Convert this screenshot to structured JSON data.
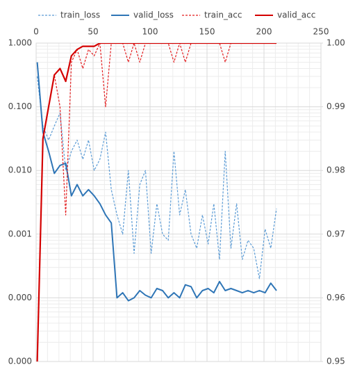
{
  "chart_data": {
    "type": "line",
    "x": [
      1,
      6,
      11,
      16,
      21,
      26,
      31,
      36,
      41,
      46,
      51,
      56,
      61,
      66,
      71,
      76,
      81,
      86,
      91,
      96,
      101,
      106,
      111,
      116,
      121,
      126,
      131,
      136,
      141,
      146,
      151,
      156,
      161,
      166,
      171,
      176,
      181,
      186,
      191,
      196,
      201,
      206,
      211
    ],
    "series": [
      {
        "name": "train_loss",
        "color": "#5b9bd5",
        "dashed": true,
        "axis": "y",
        "values": [
          0.3,
          0.05,
          0.03,
          0.05,
          0.08,
          0.01,
          0.02,
          0.03,
          0.015,
          0.03,
          0.01,
          0.015,
          0.04,
          0.005,
          0.002,
          0.001,
          0.01,
          0.0005,
          0.006,
          0.01,
          0.0005,
          0.003,
          0.001,
          0.0008,
          0.02,
          0.002,
          0.005,
          0.001,
          0.0006,
          0.002,
          0.0007,
          0.003,
          0.0004,
          0.02,
          0.0006,
          0.003,
          0.0004,
          0.0008,
          0.0006,
          0.0002,
          0.0012,
          0.0006,
          0.0025
        ]
      },
      {
        "name": "valid_loss",
        "color": "#2e75b6",
        "dashed": false,
        "axis": "y",
        "values": [
          0.5,
          0.04,
          0.02,
          0.009,
          0.012,
          0.013,
          0.004,
          0.006,
          0.004,
          0.005,
          0.004,
          0.003,
          0.002,
          0.0015,
          0.0001,
          0.00012,
          9e-05,
          0.0001,
          0.00013,
          0.00011,
          0.0001,
          0.00014,
          0.00013,
          0.0001,
          0.00012,
          0.0001,
          0.00016,
          0.00015,
          0.0001,
          0.00013,
          0.00014,
          0.00012,
          0.00018,
          0.00013,
          0.00014,
          0.00013,
          0.00012,
          0.00013,
          0.00012,
          0.00013,
          0.00012,
          0.00017,
          0.00013
        ]
      },
      {
        "name": "train_acc",
        "color": "#e31a1c",
        "dashed": true,
        "axis": "y2",
        "values": [
          0.95,
          0.985,
          0.99,
          0.995,
          0.99,
          0.973,
          0.997,
          0.999,
          0.996,
          0.999,
          0.998,
          1.0,
          0.99,
          1.0,
          1.0,
          1.0,
          0.997,
          1.0,
          0.997,
          1.0,
          1.0,
          1.0,
          1.0,
          1.0,
          0.997,
          1.0,
          0.997,
          1.0,
          1.0,
          1.0,
          1.0,
          1.0,
          1.0,
          0.997,
          1.0,
          1.0,
          1.0,
          1.0,
          1.0,
          1.0,
          1.0,
          1.0,
          1.0
        ]
      },
      {
        "name": "valid_acc",
        "color": "#d40000",
        "dashed": false,
        "axis": "y2",
        "values": [
          0.95,
          0.985,
          0.99,
          0.995,
          0.996,
          0.994,
          0.998,
          0.999,
          0.9995,
          0.9995,
          0.9995,
          1.0,
          1.0,
          1.0,
          1.0,
          1.0,
          1.0,
          1.0,
          1.0,
          1.0,
          1.0,
          1.0,
          1.0,
          1.0,
          1.0,
          1.0,
          1.0,
          1.0,
          1.0,
          1.0,
          1.0,
          1.0,
          1.0,
          1.0,
          1.0,
          1.0,
          1.0,
          1.0,
          1.0,
          1.0,
          1.0,
          1.0,
          1.0
        ]
      }
    ],
    "xlim": [
      0,
      250
    ],
    "xticks": [
      0,
      50,
      100,
      150,
      200,
      250
    ],
    "ylog": true,
    "ylim": [
      1e-05,
      1
    ],
    "yticks": [
      {
        "value": 1e-05,
        "label": "0.000"
      },
      {
        "value": 0.0001,
        "label": "0.000"
      },
      {
        "value": 0.001,
        "label": "0.001"
      },
      {
        "value": 0.01,
        "label": "0.010"
      },
      {
        "value": 0.1,
        "label": "0.100"
      },
      {
        "value": 1,
        "label": "1.000"
      }
    ],
    "y2lim": [
      0.95,
      1.0
    ],
    "y2ticks": [
      0.95,
      0.96,
      0.97,
      0.98,
      0.99,
      {
        "value": 1.0,
        "label": "1.00"
      }
    ],
    "grid": true,
    "legend": "top"
  }
}
